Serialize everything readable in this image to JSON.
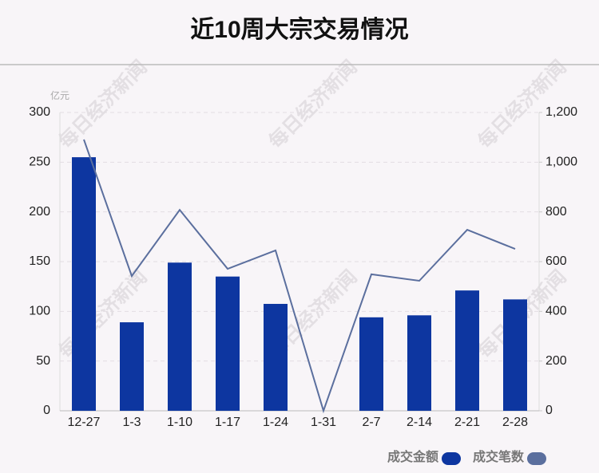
{
  "chart_data": {
    "type": "bar_line",
    "title": "近10周大宗交易情况",
    "y_unit": "亿元",
    "watermark": "每日经济新闻",
    "categories": [
      "12-27",
      "1-3",
      "1-10",
      "1-17",
      "1-24",
      "1-31",
      "2-7",
      "2-14",
      "2-21",
      "2-28"
    ],
    "series": [
      {
        "name": "成交金额",
        "type": "bar",
        "color": "#0d36a0",
        "values": [
          255,
          89,
          149,
          135,
          107.5,
          0,
          94,
          96,
          121,
          112
        ]
      },
      {
        "name": "成交笔数",
        "type": "line",
        "axis": "y2",
        "color": "#5b6f9e",
        "values": [
          1091,
          542,
          808,
          571,
          645,
          0,
          549,
          523,
          728,
          651
        ]
      }
    ],
    "ylim": [
      0,
      300
    ],
    "yticks": [
      0,
      50,
      100,
      150,
      200,
      250,
      300
    ],
    "y2lim": [
      0,
      1200
    ],
    "y2ticks": [
      0,
      200,
      400,
      600,
      800,
      {
        "value": 1000,
        "label": "1,000"
      },
      {
        "value": 1200,
        "label": "1,200"
      }
    ],
    "grid": true
  }
}
